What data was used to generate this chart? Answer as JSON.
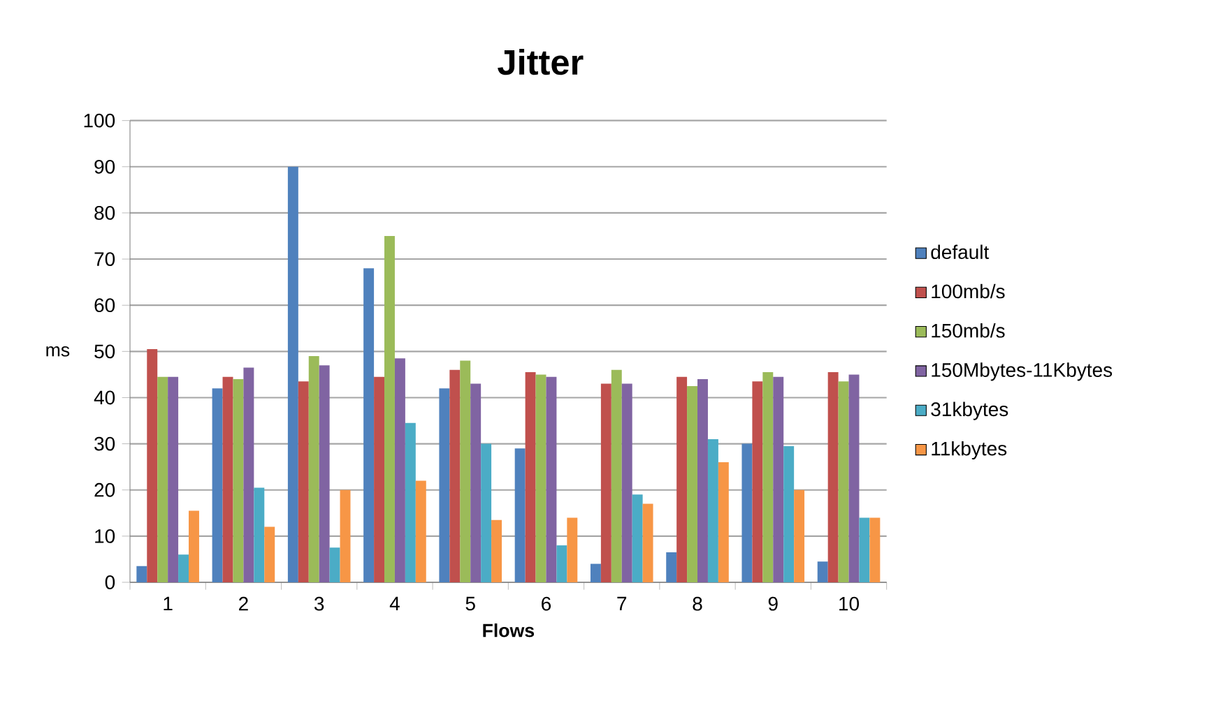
{
  "chart_data": {
    "type": "bar",
    "title": "Jitter",
    "xlabel": "Flows",
    "ylabel": "ms",
    "categories": [
      "1",
      "2",
      "3",
      "4",
      "5",
      "6",
      "7",
      "8",
      "9",
      "10"
    ],
    "series": [
      {
        "name": "default",
        "color": "#4f81bd",
        "values": [
          3.5,
          42,
          90,
          68,
          42,
          29,
          4,
          6.5,
          30,
          4.5
        ]
      },
      {
        "name": "100mb/s",
        "color": "#c0504d",
        "values": [
          50.5,
          44.5,
          43.5,
          44.5,
          46,
          45.5,
          43,
          44.5,
          43.5,
          45.5
        ]
      },
      {
        "name": "150mb/s",
        "color": "#9bbb59",
        "values": [
          44.5,
          44,
          49,
          75,
          48,
          45,
          46,
          42.5,
          45.5,
          43.5
        ]
      },
      {
        "name": "150Mbytes-11Kbytes",
        "color": "#8064a2",
        "values": [
          44.5,
          46.5,
          47,
          48.5,
          43,
          44.5,
          43,
          44,
          44.5,
          45
        ]
      },
      {
        "name": "31kbytes",
        "color": "#4bacc6",
        "values": [
          6,
          20.5,
          7.5,
          34.5,
          30,
          8,
          19,
          31,
          29.5,
          14
        ]
      },
      {
        "name": "11kbytes",
        "color": "#f79646",
        "values": [
          15.5,
          12,
          20,
          22,
          13.5,
          14,
          17,
          26,
          20,
          14
        ]
      }
    ],
    "ylim": [
      0,
      100
    ],
    "yticks": [
      0,
      10,
      20,
      30,
      40,
      50,
      60,
      70,
      80,
      90,
      100
    ],
    "grid": "y",
    "legend": "right"
  }
}
